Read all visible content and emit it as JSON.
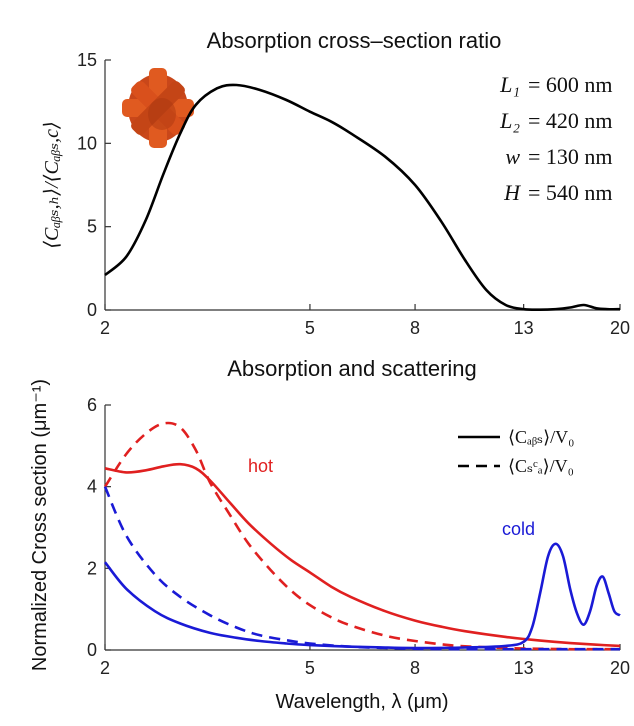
{
  "chart_data": [
    {
      "type": "line",
      "title": "Absorption cross–section ratio",
      "ylabel": "⟨C_abs,h⟩ / ⟨C_abs,c⟩",
      "ylabel_display": "⟨Cₐᵦₛ,ₕ⟩/⟨Cₐᵦₛ,c⟩",
      "xlabel": "",
      "xscale": "log",
      "xlim": [
        2,
        20
      ],
      "ylim": [
        0,
        15
      ],
      "xticks": [
        2,
        5,
        8,
        13,
        20
      ],
      "yticks": [
        0,
        5,
        10,
        15
      ],
      "grid": false,
      "annotations": [
        {
          "label": "L₁",
          "value": "= 600 nm"
        },
        {
          "label": "L₂",
          "value": "= 420 nm"
        },
        {
          "label": "w",
          "value": "= 130 nm"
        },
        {
          "label": "H",
          "value": "= 540 nm"
        }
      ],
      "series": [
        {
          "name": "ratio",
          "color": "#000000",
          "x": [
            2.0,
            2.2,
            2.4,
            2.6,
            2.8,
            3.0,
            3.3,
            3.6,
            4.0,
            4.5,
            5.0,
            5.5,
            6.0,
            7.0,
            8.0,
            9.0,
            10.0,
            11.0,
            12.0,
            13.0,
            14.0,
            15.0,
            16.0,
            17.0,
            18.0,
            19.0,
            20.0
          ],
          "y": [
            2.1,
            3.2,
            5.4,
            8.2,
            10.6,
            12.3,
            13.3,
            13.5,
            13.2,
            12.6,
            11.9,
            11.3,
            10.6,
            9.2,
            7.5,
            5.3,
            3.0,
            1.2,
            0.3,
            0.05,
            0.02,
            0.05,
            0.15,
            0.3,
            0.1,
            0.05,
            0.05
          ]
        }
      ]
    },
    {
      "type": "line",
      "title": "Absorption and scattering",
      "ylabel": "Normalized Cross section (μm⁻¹)",
      "xlabel": "Wavelength, λ (μm)",
      "xscale": "log",
      "xlim": [
        2,
        20
      ],
      "ylim": [
        0,
        6
      ],
      "xticks": [
        2,
        5,
        8,
        13,
        20
      ],
      "yticks": [
        0,
        2,
        4,
        6
      ],
      "grid": false,
      "legend_position": "top-right",
      "legend": [
        {
          "label": "⟨C_abs⟩/V₀",
          "display": "⟨Cₐᵦₛ⟩/V₀",
          "style": "solid"
        },
        {
          "label": "⟨C_sca⟩/V₀",
          "display": "⟨Cₛᶜₐ⟩/V₀",
          "style": "dashed"
        }
      ],
      "text_annotations": [
        {
          "text": "hot",
          "color": "#e02020"
        },
        {
          "text": "cold",
          "color": "#1a1ad6"
        }
      ],
      "series": [
        {
          "name": "hot abs",
          "color": "#e02020",
          "style": "solid",
          "x": [
            2.0,
            2.2,
            2.4,
            2.6,
            2.8,
            3.0,
            3.2,
            3.5,
            3.8,
            4.2,
            4.6,
            5.0,
            5.5,
            6.0,
            7.0,
            8.0,
            9.0,
            10.0,
            12.0,
            14.0,
            16.0,
            18.0,
            20.0
          ],
          "y": [
            4.45,
            4.35,
            4.4,
            4.5,
            4.55,
            4.45,
            4.15,
            3.6,
            3.1,
            2.6,
            2.2,
            1.9,
            1.55,
            1.3,
            0.95,
            0.72,
            0.57,
            0.46,
            0.32,
            0.23,
            0.17,
            0.13,
            0.1
          ]
        },
        {
          "name": "hot sca",
          "color": "#e02020",
          "style": "dashed",
          "x": [
            2.0,
            2.2,
            2.4,
            2.6,
            2.8,
            3.0,
            3.2,
            3.5,
            3.8,
            4.2,
            4.6,
            5.0,
            5.5,
            6.0,
            7.0,
            8.0,
            9.0,
            10.0,
            12.0,
            14.0,
            16.0,
            18.0,
            20.0
          ],
          "y": [
            4.0,
            4.8,
            5.3,
            5.55,
            5.45,
            4.9,
            4.1,
            3.3,
            2.6,
            1.95,
            1.45,
            1.1,
            0.8,
            0.6,
            0.35,
            0.22,
            0.14,
            0.09,
            0.05,
            0.03,
            0.02,
            0.02,
            0.02
          ]
        },
        {
          "name": "cold abs",
          "color": "#1a1ad6",
          "style": "solid",
          "x": [
            2.0,
            2.2,
            2.5,
            2.8,
            3.2,
            3.6,
            4.0,
            4.5,
            5.0,
            6.0,
            7.0,
            8.0,
            10.0,
            12.0,
            13.0,
            13.5,
            14.0,
            14.5,
            15.0,
            15.5,
            16.0,
            16.5,
            17.0,
            17.5,
            18.0,
            18.5,
            19.0,
            19.5,
            20.0
          ],
          "y": [
            2.15,
            1.5,
            0.95,
            0.65,
            0.42,
            0.3,
            0.22,
            0.16,
            0.12,
            0.08,
            0.06,
            0.05,
            0.06,
            0.1,
            0.2,
            0.55,
            1.4,
            2.3,
            2.6,
            2.3,
            1.5,
            0.9,
            0.62,
            0.95,
            1.55,
            1.8,
            1.4,
            0.95,
            0.85
          ]
        },
        {
          "name": "cold sca",
          "color": "#1a1ad6",
          "style": "dashed",
          "x": [
            2.0,
            2.2,
            2.5,
            2.8,
            3.2,
            3.6,
            4.0,
            4.5,
            5.0,
            6.0,
            7.0,
            8.0,
            10.0,
            12.0,
            13.0,
            14.0,
            16.0,
            18.0,
            20.0
          ],
          "y": [
            4.0,
            2.8,
            1.85,
            1.3,
            0.85,
            0.55,
            0.36,
            0.24,
            0.16,
            0.08,
            0.05,
            0.03,
            0.02,
            0.02,
            0.02,
            0.02,
            0.02,
            0.02,
            0.02
          ]
        }
      ]
    }
  ]
}
